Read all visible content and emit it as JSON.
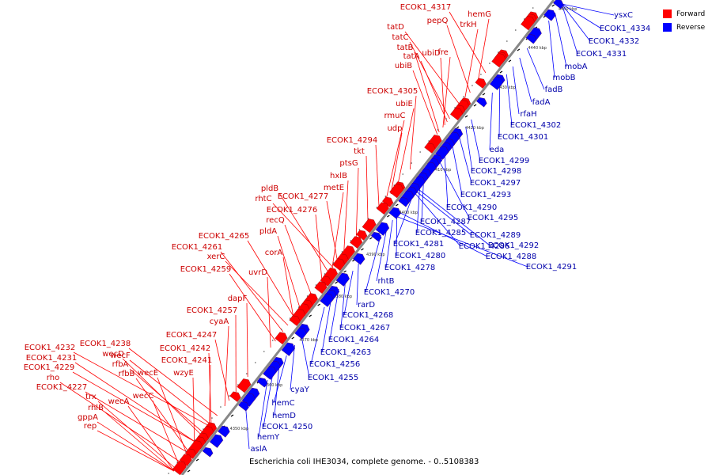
{
  "caption": "Escherichia coli IHE3034, complete genome. - 0..5108383",
  "legend": [
    {
      "label": "Forward",
      "color": "#ff0000"
    },
    {
      "label": "Reverse",
      "color": "#0000ff"
    }
  ],
  "colors": {
    "forward": "#ff0000",
    "reverse": "#0000ff",
    "backbone": "#888888",
    "forward_text": "#cc0000",
    "reverse_text": "#0000aa"
  },
  "ticks": [
    "4350 kbp",
    "4360 kbp",
    "4370 kbp",
    "4380 kbp",
    "4390 kbp",
    "4400 kbp",
    "4410 kbp",
    "4420 kbp",
    "4430 kbp",
    "4440 kbp",
    "4450 kbp"
  ],
  "forward_labels": [
    "ECOK1_4317",
    "hemG",
    "pepQ",
    "trkH",
    "tatD",
    "tatC",
    "tatB",
    "tatA",
    "ubiB",
    "ubiD",
    "fre",
    "ECOK1_4305",
    "ubiE",
    "rmuC",
    "udp",
    "ECOK1_4294",
    "tkt",
    "ptsG",
    "hxlB",
    "metE",
    "pldB",
    "ECOK1_4277",
    "rhtC",
    "ECOK1_4276",
    "recQ",
    "pldA",
    "ECOK1_4265",
    "ECOK1_4261",
    "corA",
    "xerC",
    "ECOK1_4259",
    "uvrD",
    "dapF",
    "ECOK1_4257",
    "cyaA",
    "ECOK1_4247",
    "wecF",
    "ECOK1_4238",
    "ECOK1_4242",
    "ECOK1_4232",
    "wecD",
    "ECOK1_4231",
    "ECOK1_4241",
    "rfbA",
    "wzyE",
    "ECOK1_4229",
    "rfbB",
    "wecE",
    "rho",
    "ECOK1_4227",
    "wecC",
    "trx",
    "wecA",
    "rhlB",
    "gppA",
    "rep"
  ],
  "reverse_labels": [
    "ysxC",
    "ECOK1_4334",
    "ECOK1_4332",
    "ECOK1_4331",
    "mobA",
    "mobB",
    "fadB",
    "fadA",
    "rfaH",
    "ECOK1_4302",
    "ECOK1_4301",
    "eda",
    "ECOK1_4299",
    "ECOK1_4298",
    "ECOK1_4297",
    "ECOK1_4293",
    "ECOK1_4290",
    "ECOK1_4295",
    "ECOK1_4287",
    "ECOK1_4289",
    "ECOK1_4285",
    "ECOK1_4281",
    "ECOK1_4286",
    "ECOK1_4292",
    "ECOK1_4280",
    "ECOK1_4288",
    "ECOK1_4278",
    "ECOK1_4291",
    "rhtB",
    "ECOK1_4270",
    "rarD",
    "ECOK1_4268",
    "ECOK1_4267",
    "ECOK1_4264",
    "ECOK1_4263",
    "ECOK1_4256",
    "ECOK1_4255",
    "cyaY",
    "hemC",
    "hemD",
    "ECOK1_4250",
    "hemY",
    "aslA"
  ]
}
